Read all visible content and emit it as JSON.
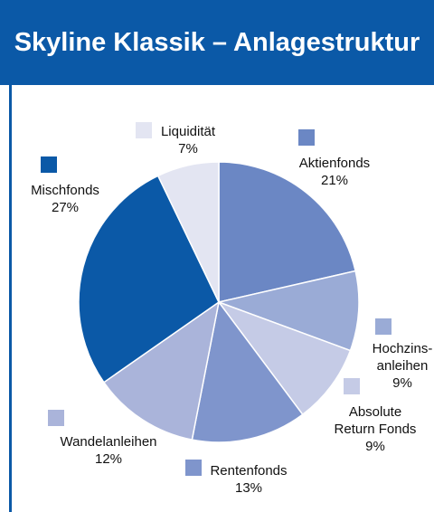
{
  "chart_data": {
    "type": "pie",
    "title": "Skyline Klassik – Anlagestruktur",
    "categories": [
      "Aktienfonds",
      "Hochzins-\nanleihen",
      "Absolute\nReturn Fonds",
      "Rentenfonds",
      "Wandelanleihen",
      "Mischfonds",
      "Liquidität"
    ],
    "values": [
      21,
      9,
      9,
      13,
      12,
      27,
      7
    ],
    "value_labels": [
      "21%",
      "9%",
      "9%",
      "13%",
      "12%",
      "27%",
      "7%"
    ],
    "colors": [
      "#6b87c4",
      "#9aabd6",
      "#c5cbe6",
      "#7f95cc",
      "#aab4da",
      "#0b59a7",
      "#e3e5f2"
    ]
  }
}
